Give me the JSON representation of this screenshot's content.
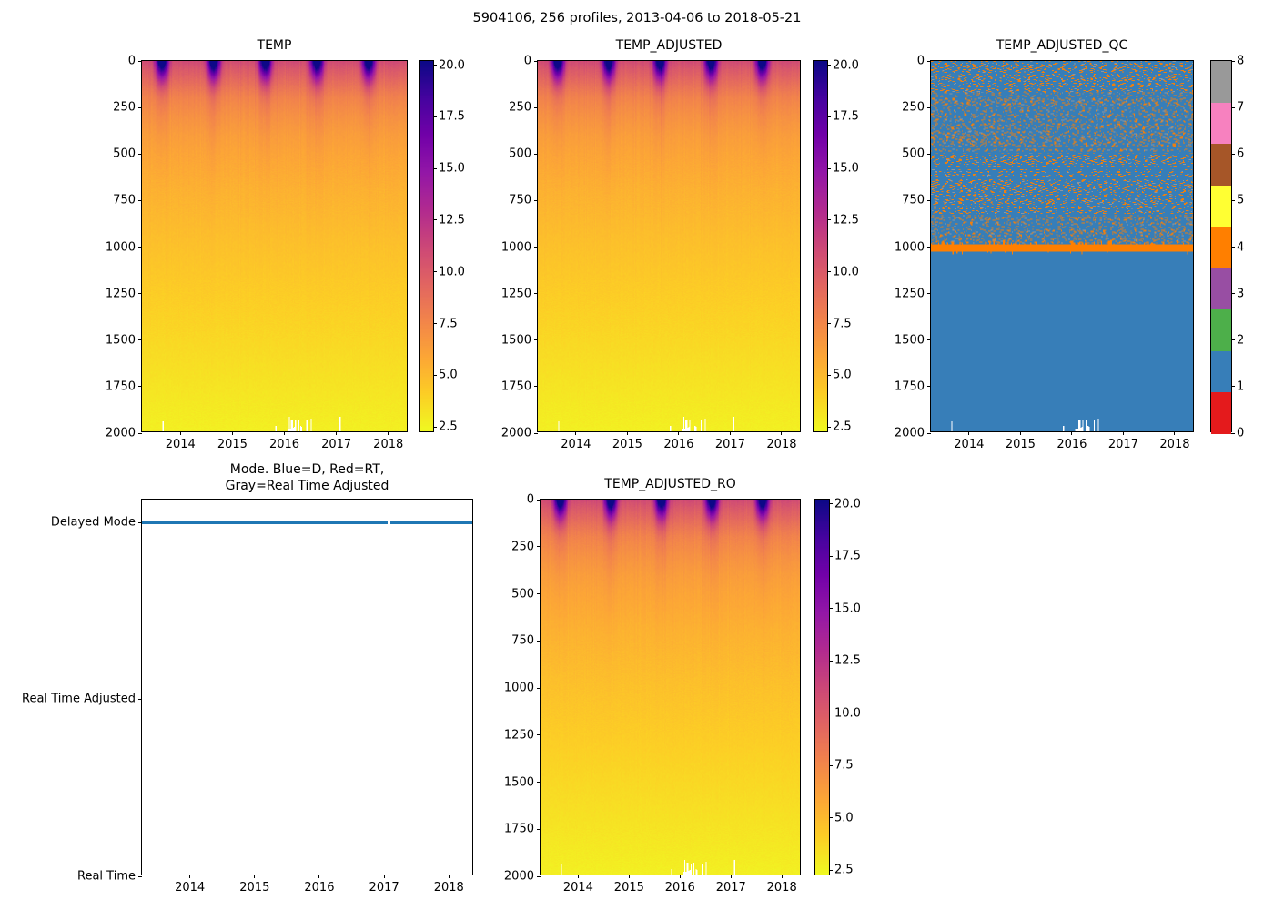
{
  "figure": {
    "title": "5904106, 256 profiles, 2013-04-06 to 2018-05-21"
  },
  "panels": {
    "temp": {
      "title": "TEMP",
      "xticks": [
        "2014",
        "2015",
        "2016",
        "2017",
        "2018"
      ],
      "yticks": [
        "0",
        "250",
        "500",
        "750",
        "1000",
        "1250",
        "1500",
        "1750",
        "2000"
      ],
      "cticks": [
        "2.5",
        "5.0",
        "7.5",
        "10.0",
        "12.5",
        "15.0",
        "17.5",
        "20.0"
      ]
    },
    "temp_adjusted": {
      "title": "TEMP_ADJUSTED",
      "xticks": [
        "2014",
        "2015",
        "2016",
        "2017",
        "2018"
      ],
      "yticks": [
        "0",
        "250",
        "500",
        "750",
        "1000",
        "1250",
        "1500",
        "1750",
        "2000"
      ],
      "cticks": [
        "2.5",
        "5.0",
        "7.5",
        "10.0",
        "12.5",
        "15.0",
        "17.5",
        "20.0"
      ]
    },
    "temp_adjusted_qc": {
      "title": "TEMP_ADJUSTED_QC",
      "xticks": [
        "2014",
        "2015",
        "2016",
        "2017",
        "2018"
      ],
      "yticks": [
        "0",
        "250",
        "500",
        "750",
        "1000",
        "1250",
        "1500",
        "1750",
        "2000"
      ],
      "cticks": [
        "0",
        "1",
        "2",
        "3",
        "4",
        "5",
        "6",
        "7",
        "8"
      ]
    },
    "mode": {
      "title": "Mode. Blue=D, Red=RT,\nGray=Real Time Adjusted",
      "xticks": [
        "2014",
        "2015",
        "2016",
        "2017",
        "2018"
      ],
      "yticks": [
        "Delayed Mode",
        "Real Time Adjusted",
        "Real Time"
      ]
    },
    "temp_adjusted_ro": {
      "title": "TEMP_ADJUSTED_RO",
      "xticks": [
        "2014",
        "2015",
        "2016",
        "2017",
        "2018"
      ],
      "yticks": [
        "0",
        "250",
        "500",
        "750",
        "1000",
        "1250",
        "1500",
        "1750",
        "2000"
      ],
      "cticks": [
        "2.5",
        "5.0",
        "7.5",
        "10.0",
        "12.5",
        "15.0",
        "17.5",
        "20.0"
      ]
    }
  },
  "chart_data": [
    {
      "panel": "TEMP",
      "type": "heatmap",
      "n_profiles": 256,
      "x_range_years": [
        2013.26,
        2018.39
      ],
      "xticks": [
        2014,
        2015,
        2016,
        2017,
        2018
      ],
      "depth_range_m": [
        0,
        2000
      ],
      "y_axis_inverted": true,
      "colormap": "plasma_r",
      "value_range_c": [
        2.2,
        20.2
      ],
      "colorbar_ticks": [
        2.5,
        5.0,
        7.5,
        10.0,
        12.5,
        15.0,
        17.5,
        20.0
      ],
      "mean_profile": {
        "depth_m": [
          0,
          50,
          100,
          150,
          200,
          300,
          400,
          500,
          700,
          1000,
          1250,
          1500,
          1750,
          2000
        ],
        "temp_c": [
          11.0,
          10.0,
          9.2,
          8.4,
          7.7,
          6.9,
          6.3,
          5.9,
          5.3,
          4.6,
          4.1,
          3.6,
          3.1,
          2.6
        ]
      },
      "surface_summer_max_c": 20.0,
      "seasonal_peak_year_fraction": 0.65,
      "deep_gap_cluster_year": 2016.2
    },
    {
      "panel": "TEMP_ADJUSTED",
      "type": "heatmap",
      "same_field_as": "TEMP"
    },
    {
      "panel": "TEMP_ADJUSTED_QC",
      "type": "heatmap",
      "flag_values": [
        0,
        1,
        2,
        3,
        4,
        5,
        6,
        7,
        8
      ],
      "palette": [
        "#e41a1c",
        "#377eb8",
        "#4daf4a",
        "#984ea3",
        "#ff7f00",
        "#ffff33",
        "#a65628",
        "#f781bf",
        "#999999"
      ],
      "dominant_flag": 1,
      "speckle_flag": 4,
      "orange_band_depth_m": [
        990,
        1025
      ],
      "speckled_region_depth_m": [
        0,
        990
      ],
      "solid_region_depth_m": [
        1025,
        2000
      ]
    },
    {
      "panel": "Mode",
      "type": "line",
      "y_categories": [
        "Real Time",
        "Real Time Adjusted",
        "Delayed Mode"
      ],
      "series_value": "Delayed Mode",
      "line_color": "#1f77b4",
      "gap_year": 2017.05
    },
    {
      "panel": "TEMP_ADJUSTED_RO",
      "type": "heatmap",
      "same_field_as": "TEMP"
    }
  ]
}
